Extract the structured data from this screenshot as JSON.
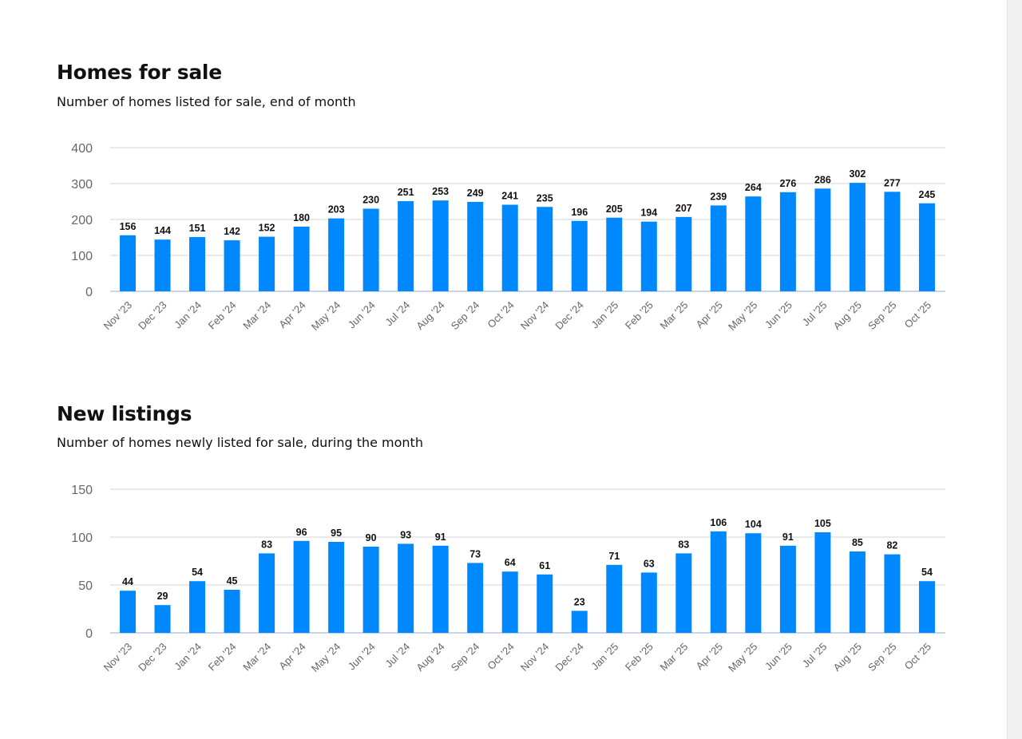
{
  "bar_color": "#0088ff",
  "chart_data": [
    {
      "type": "bar",
      "title": "Homes for sale",
      "subtitle": "Number of homes listed for sale, end of month",
      "categories": [
        "Nov '23",
        "Dec '23",
        "Jan '24",
        "Feb '24",
        "Mar '24",
        "Apr '24",
        "May '24",
        "Jun '24",
        "Jul '24",
        "Aug '24",
        "Sep '24",
        "Oct '24",
        "Nov '24",
        "Dec '24",
        "Jan '25",
        "Feb '25",
        "Mar '25",
        "Apr '25",
        "May '25",
        "Jun '25",
        "Jul '25",
        "Aug '25",
        "Sep '25",
        "Oct '25"
      ],
      "values": [
        156,
        144,
        151,
        142,
        152,
        180,
        203,
        230,
        251,
        253,
        249,
        241,
        235,
        196,
        205,
        194,
        207,
        239,
        264,
        276,
        286,
        302,
        277,
        245
      ],
      "ylim": [
        0,
        400
      ],
      "yticks": [
        0,
        100,
        200,
        300,
        400
      ],
      "grid": true,
      "data_labels": true
    },
    {
      "type": "bar",
      "title": "New listings",
      "subtitle": "Number of homes newly listed for sale, during the month",
      "categories": [
        "Nov '23",
        "Dec '23",
        "Jan '24",
        "Feb '24",
        "Mar '24",
        "Apr '24",
        "May '24",
        "Jun '24",
        "Jul '24",
        "Aug '24",
        "Sep '24",
        "Oct '24",
        "Nov '24",
        "Dec '24",
        "Jan '25",
        "Feb '25",
        "Mar '25",
        "Apr '25",
        "May '25",
        "Jun '25",
        "Jul '25",
        "Aug '25",
        "Sep '25",
        "Oct '25"
      ],
      "values": [
        44,
        29,
        54,
        45,
        83,
        96,
        95,
        90,
        93,
        91,
        73,
        64,
        61,
        23,
        71,
        63,
        83,
        106,
        104,
        91,
        105,
        85,
        82,
        54
      ],
      "ylim": [
        0,
        150
      ],
      "yticks": [
        0,
        50,
        100,
        150
      ],
      "grid": true,
      "data_labels": true
    }
  ]
}
